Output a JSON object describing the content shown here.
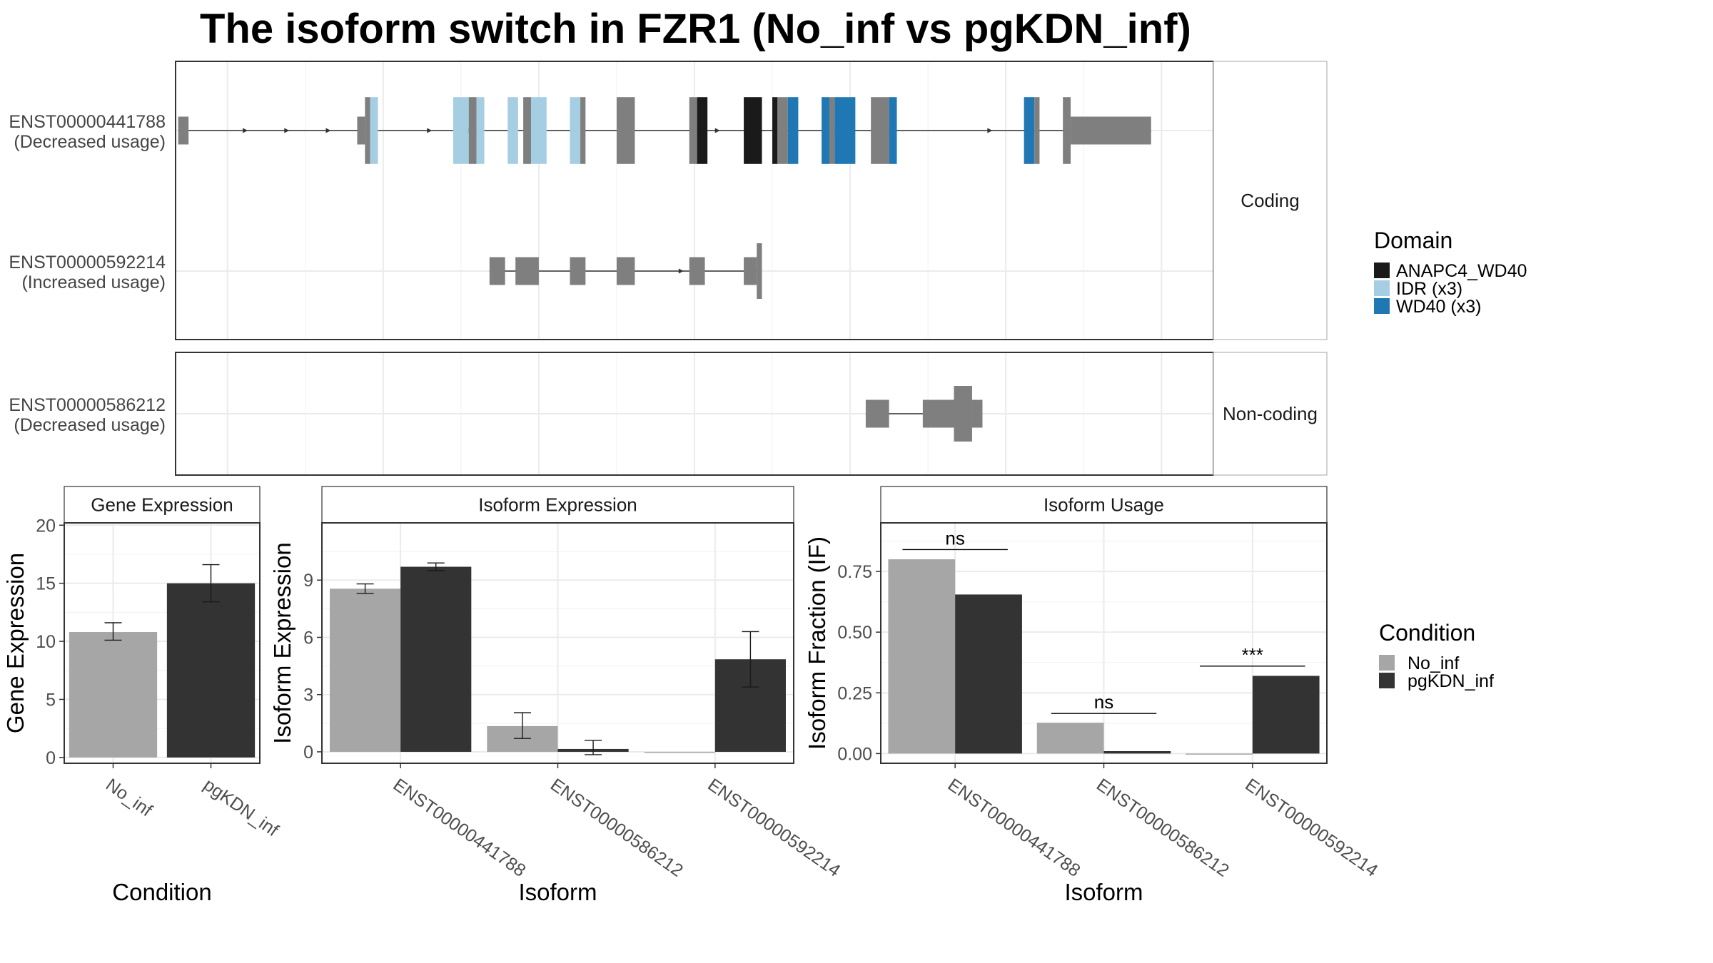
{
  "title": "The isoform switch in FZR1 (No_inf vs pgKDN_inf)",
  "colors": {
    "exon_default": "#7f7f7f",
    "ANAPC4_WD40": "#1a1a1a",
    "IDR": "#a6cee3",
    "WD40": "#1f78b4",
    "No_inf": "#a6a6a6",
    "pgKDN_inf": "#333333",
    "grid_major": "#ebebeb",
    "grid_minor": "#f5f5f5",
    "panel_border": "#333333",
    "strip_fill": "#ffffff"
  },
  "chart_data": [
    {
      "type": "isoform_structure",
      "facets": [
        {
          "strip": "Coding",
          "transcripts": [
            {
              "id": "ENST00000441788",
              "label_line1": "ENST00000441788",
              "label_line2": "(Decreased usage)",
              "exons": [
                [
                  1,
                  5,
                  "exon",
                  1.0
                ],
                [
                  70,
                  73,
                  "exon",
                  1.0
                ],
                [
                  73,
                  75,
                  "exon",
                  2.4
                ],
                [
                  75,
                  78,
                  "IDR",
                  2.4
                ],
                [
                  107,
                  113,
                  "IDR",
                  2.4
                ],
                [
                  113,
                  116,
                  "exon",
                  2.4
                ],
                [
                  116,
                  119,
                  "IDR",
                  2.4
                ],
                [
                  128,
                  132,
                  "IDR",
                  2.4
                ],
                [
                  134,
                  137,
                  "exon",
                  2.4
                ],
                [
                  137,
                  143,
                  "IDR",
                  2.4
                ],
                [
                  152,
                  156,
                  "IDR",
                  2.4
                ],
                [
                  156,
                  158,
                  "exon",
                  2.4
                ],
                [
                  170,
                  177,
                  "exon",
                  2.4
                ],
                [
                  198,
                  201,
                  "exon",
                  2.4
                ],
                [
                  201,
                  205,
                  "ANAPC4_WD40",
                  2.4
                ],
                [
                  219,
                  226,
                  "ANAPC4_WD40",
                  2.4
                ],
                [
                  230,
                  232,
                  "ANAPC4_WD40",
                  2.4
                ],
                [
                  232,
                  236,
                  "exon",
                  2.4
                ],
                [
                  236,
                  240,
                  "WD40",
                  2.4
                ],
                [
                  249,
                  252,
                  "WD40",
                  2.4
                ],
                [
                  252,
                  254,
                  "exon",
                  2.4
                ],
                [
                  254,
                  262,
                  "WD40",
                  2.4
                ],
                [
                  268,
                  275,
                  "exon",
                  2.4
                ],
                [
                  275,
                  278,
                  "WD40",
                  2.4
                ],
                [
                  327,
                  331,
                  "WD40",
                  2.4
                ],
                [
                  331,
                  333,
                  "exon",
                  2.4
                ],
                [
                  342,
                  345,
                  "exon",
                  2.4
                ],
                [
                  345,
                  376,
                  "exon",
                  1.0
                ]
              ],
              "arrows": [
                27,
                43,
                59,
                98,
                114,
                209,
                314,
                330
              ]
            },
            {
              "id": "ENST00000592214",
              "label_line1": "ENST00000592214",
              "label_line2": "(Increased usage)",
              "exons": [
                [
                  121,
                  127,
                  "exon",
                  1.0
                ],
                [
                  131,
                  140,
                  "exon",
                  1.0
                ],
                [
                  152,
                  158,
                  "exon",
                  1.0
                ],
                [
                  170,
                  177,
                  "exon",
                  1.0
                ],
                [
                  198,
                  204,
                  "exon",
                  1.0
                ],
                [
                  219,
                  224,
                  "exon",
                  1.0
                ],
                [
                  224,
                  226,
                  "exon",
                  2.0
                ]
              ],
              "arrows": [
                195
              ]
            }
          ]
        },
        {
          "strip": "Non-coding",
          "transcripts": [
            {
              "id": "ENST00000586212",
              "label_line1": "ENST00000586212",
              "label_line2": "(Decreased usage)",
              "exons": [
                [
                  266,
                  275,
                  "exon",
                  1.0
                ],
                [
                  288,
                  300,
                  "exon",
                  1.0
                ],
                [
                  300,
                  307,
                  "exon",
                  2.0
                ],
                [
                  307,
                  311,
                  "exon",
                  1.0
                ]
              ],
              "arrows": []
            }
          ]
        }
      ]
    },
    {
      "type": "bar",
      "strip": "Gene Expression",
      "xlabel": "Condition",
      "ylabel": "Gene Expression",
      "categories": [
        "No_inf",
        "pgKDN_inf"
      ],
      "values": [
        10.8,
        15.0
      ],
      "errors": [
        [
          10.1,
          11.6
        ],
        [
          13.4,
          16.6
        ]
      ],
      "ylim": [
        -0.5,
        20.2
      ],
      "yticks": [
        0,
        5,
        10,
        15,
        20
      ]
    },
    {
      "type": "bar",
      "strip": "Isoform Expression",
      "xlabel": "Isoform",
      "ylabel": "Isoform Expression",
      "categories": [
        "ENST00000441788",
        "ENST00000586212",
        "ENST00000592214"
      ],
      "series": [
        {
          "name": "No_inf",
          "values": [
            8.55,
            1.35,
            0.0
          ],
          "errors": [
            [
              8.3,
              8.8
            ],
            [
              0.7,
              2.05
            ],
            [
              0.0,
              0.0
            ]
          ]
        },
        {
          "name": "pgKDN_inf",
          "values": [
            9.7,
            0.15,
            4.85
          ],
          "errors": [
            [
              9.5,
              9.9
            ],
            [
              -0.15,
              0.6
            ],
            [
              3.4,
              6.3
            ]
          ]
        }
      ],
      "ylim": [
        -0.6,
        12.0
      ],
      "yticks": [
        0,
        3,
        6,
        9
      ]
    },
    {
      "type": "bar",
      "strip": "Isoform Usage",
      "xlabel": "Isoform",
      "ylabel": "Isoform Fraction (IF)",
      "categories": [
        "ENST00000441788",
        "ENST00000586212",
        "ENST00000592214"
      ],
      "series": [
        {
          "name": "No_inf",
          "values": [
            0.8,
            0.127,
            0.0
          ]
        },
        {
          "name": "pgKDN_inf",
          "values": [
            0.655,
            0.01,
            0.32
          ]
        }
      ],
      "significance": [
        {
          "category": "ENST00000441788",
          "label": "ns",
          "y": 0.84
        },
        {
          "category": "ENST00000586212",
          "label": "ns",
          "y": 0.165
        },
        {
          "category": "ENST00000592214",
          "label": "***",
          "y": 0.36
        }
      ],
      "ylim": [
        -0.04,
        0.95
      ],
      "yticks": [
        "0.00",
        "0.25",
        "0.50",
        "0.75"
      ]
    }
  ],
  "legends": {
    "domain": {
      "title": "Domain",
      "items": [
        {
          "key": "ANAPC4_WD40",
          "label": "ANAPC4_WD40"
        },
        {
          "key": "IDR",
          "label": "IDR (x3)"
        },
        {
          "key": "WD40",
          "label": "WD40 (x3)"
        }
      ]
    },
    "condition": {
      "title": "Condition",
      "items": [
        {
          "key": "No_inf",
          "label": "No_inf"
        },
        {
          "key": "pgKDN_inf",
          "label": "pgKDN_inf"
        }
      ]
    }
  }
}
